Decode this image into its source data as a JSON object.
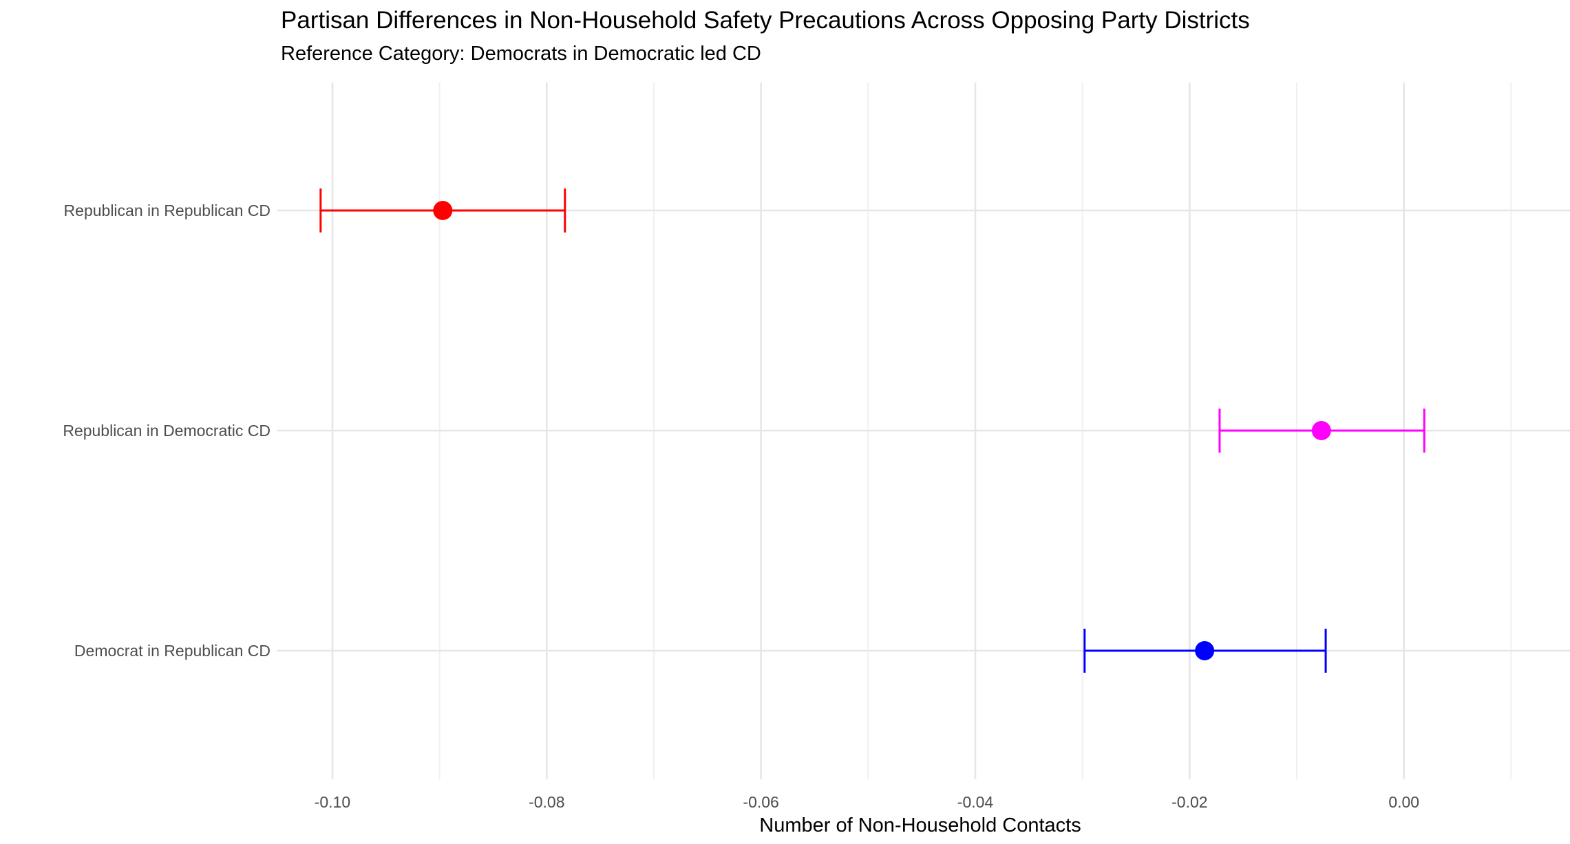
{
  "chart_data": {
    "type": "scatter",
    "title": "Partisan Differences in Non-Household Safety Precautions Across Opposing Party Districts",
    "subtitle": "Reference Category: Democrats in Democratic led CD",
    "xlabel": "Number of Non-Household Contacts",
    "ylabel": "",
    "xlim": [
      -0.1052,
      0.0155
    ],
    "x_ticks": [
      -0.1,
      -0.08,
      -0.06,
      -0.04,
      -0.02,
      0.0
    ],
    "x_tick_labels": [
      "-0.10",
      "-0.08",
      "-0.06",
      "-0.04",
      "-0.02",
      "0.00"
    ],
    "grid": true,
    "legend": "none",
    "categories": [
      "Republican in Republican CD",
      "Republican in Democratic CD",
      "Democrat in Republican CD"
    ],
    "points": [
      {
        "category": "Republican in Republican CD",
        "estimate": -0.0897,
        "ci_low": -0.1011,
        "ci_high": -0.0783,
        "color": "#FF0000"
      },
      {
        "category": "Republican in Democratic CD",
        "estimate": -0.0077,
        "ci_low": -0.0172,
        "ci_high": 0.0019,
        "color": "#FF00FF"
      },
      {
        "category": "Democrat in Republican CD",
        "estimate": -0.0186,
        "ci_low": -0.0298,
        "ci_high": -0.0073,
        "color": "#0000FF"
      }
    ]
  }
}
